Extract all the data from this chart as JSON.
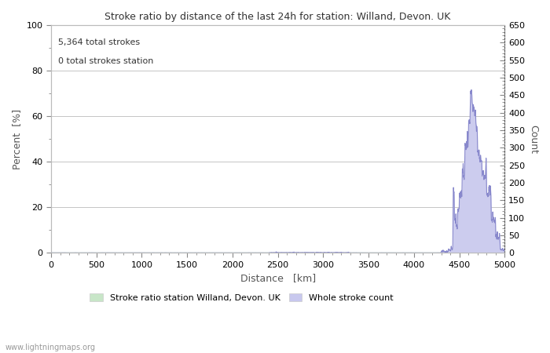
{
  "title": "Stroke ratio by distance of the last 24h for station: Willand, Devon. UK",
  "xlabel": "Distance   [km]",
  "ylabel_left": "Percent  [%]",
  "ylabel_right": "Count",
  "annotation_line1": "5,364 total strokes",
  "annotation_line2": "0 total strokes station",
  "watermark": "www.lightningmaps.org",
  "xlim": [
    0,
    5000
  ],
  "ylim_left": [
    0,
    100
  ],
  "ylim_right": [
    0,
    650
  ],
  "yticks_left": [
    0,
    20,
    40,
    60,
    80,
    100
  ],
  "yticks_right": [
    0,
    50,
    100,
    150,
    200,
    250,
    300,
    350,
    400,
    450,
    500,
    550,
    600,
    650
  ],
  "xticks": [
    0,
    500,
    1000,
    1500,
    2000,
    2500,
    3000,
    3500,
    4000,
    4500,
    5000
  ],
  "legend_entries": [
    "Stroke ratio station Willand, Devon. UK",
    "Whole stroke count"
  ],
  "legend_colors": [
    "#c8e6c8",
    "#c8c8ee"
  ],
  "bg_color": "#ffffff",
  "grid_color": "#bbbbbb",
  "stroke_count_color": "#8888cc",
  "stroke_count_fill": "#ccccee",
  "stroke_ratio_color": "#88cc88",
  "stroke_ratio_fill": "#c8e6c8",
  "minor_tick_interval_x": 100,
  "minor_tick_interval_y_left": 10,
  "minor_tick_interval_y_right": 10,
  "figsize": [
    7.0,
    4.5
  ],
  "dpi": 100,
  "title_fontsize": 9,
  "label_fontsize": 9,
  "tick_fontsize": 8,
  "annotation_fontsize": 8,
  "watermark_fontsize": 7
}
